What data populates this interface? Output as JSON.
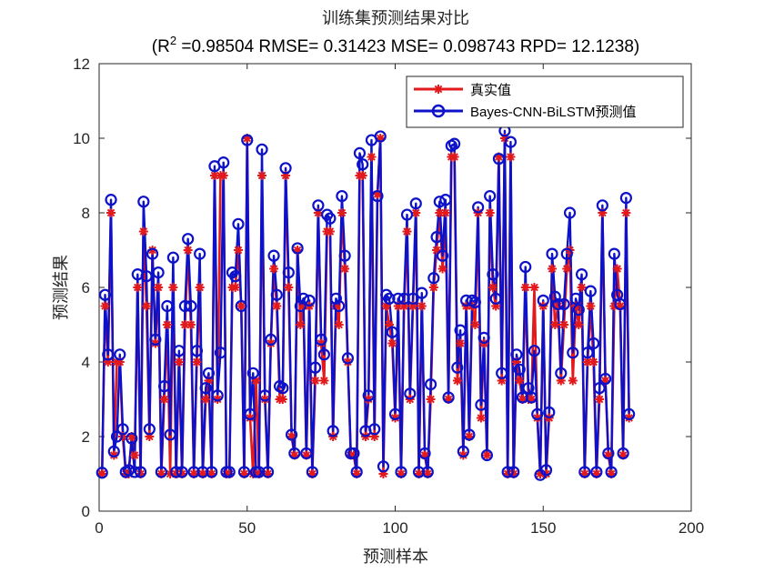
{
  "chart_data": {
    "type": "line",
    "title": "训练集预测结果对比",
    "subtitle": "(R² =0.98504 RMSE= 0.31423 MSE= 0.098743 RPD= 12.1238)",
    "xlabel": "预测样本",
    "ylabel": "预测结果",
    "xlim": [
      0,
      200
    ],
    "ylim": [
      0,
      12
    ],
    "xticks": [
      "0",
      "50",
      "100",
      "150",
      "200"
    ],
    "yticks": [
      "0",
      "2",
      "4",
      "6",
      "8",
      "10",
      "12"
    ],
    "grid": false,
    "legend_position": "top-right",
    "series": [
      {
        "name": "真实值",
        "color": "#e31a1c",
        "marker": "asterisk",
        "values": [
          1,
          5.5,
          4,
          8,
          1.5,
          4,
          4,
          2,
          1,
          1,
          2,
          1.5,
          6,
          1,
          7.5,
          5.5,
          2,
          7,
          4.5,
          6,
          1,
          3,
          5,
          1,
          6,
          1,
          4,
          1,
          5,
          7,
          5,
          1,
          4,
          6,
          1,
          3,
          3.5,
          1,
          9,
          3,
          9,
          9,
          1,
          1,
          6,
          6,
          7,
          5.5,
          1,
          10,
          2.5,
          1,
          3.5,
          1,
          9,
          3,
          1,
          4.5,
          6.5,
          5.5,
          3,
          3,
          9,
          6,
          2,
          1.5,
          7,
          5,
          5.5,
          1.5,
          5.5,
          1,
          3.5,
          8,
          4.5,
          3.5,
          7.5,
          7.5,
          2,
          5.5,
          5,
          8,
          6.5,
          4,
          1.5,
          1.5,
          1,
          9,
          9,
          2,
          3,
          9.5,
          2,
          8.5,
          10,
          1,
          5.5,
          5,
          4.5,
          2.5,
          5.5,
          1,
          5.5,
          7.5,
          3,
          5.5,
          8,
          1,
          5.5,
          1.5,
          1,
          3,
          6,
          7,
          8,
          6.5,
          8,
          3,
          9.5,
          9.5,
          3.5,
          4.5,
          1.5,
          5.5,
          2,
          5.5,
          5,
          8,
          2.5,
          4.5,
          1.5,
          8,
          6,
          5.5,
          9.5,
          3.5,
          10,
          1,
          9.5,
          1,
          4,
          3.5,
          3,
          6,
          3,
          3,
          6,
          2.5,
          1,
          5.5,
          1,
          2.5,
          6.5,
          5,
          5.5,
          3.5,
          5,
          6.5,
          7,
          3.5,
          5.5,
          5,
          6,
          1,
          4,
          5.5,
          4,
          1,
          3,
          8,
          3.5,
          1.5,
          1,
          5.5,
          6.5,
          5.5,
          1.5,
          8,
          2.5
        ],
        "name_ref": "legend.true_label"
      },
      {
        "name": "Bayes-CNN-BiLSTM预测值",
        "color": "#0d12c9",
        "marker": "circle",
        "values": [
          1.03,
          5.8,
          4.2,
          8.35,
          1.6,
          2,
          4.2,
          2.2,
          1.05,
          1.1,
          1.95,
          1.05,
          6.35,
          1.05,
          8.3,
          6.3,
          2.2,
          6.9,
          4.6,
          6.4,
          1.05,
          3.35,
          5.5,
          2.05,
          6.8,
          1.05,
          4.3,
          1.05,
          5.5,
          7.3,
          5.5,
          1.05,
          4.3,
          6.9,
          1.05,
          3.3,
          3.7,
          1.05,
          9.25,
          3.1,
          4.25,
          9.35,
          1.05,
          1.05,
          6.4,
          6.3,
          7.7,
          5.5,
          1.05,
          9.95,
          2.6,
          3.7,
          1.05,
          1.05,
          9.7,
          3.1,
          1.05,
          4.6,
          6.85,
          5.8,
          3.35,
          3.3,
          9.2,
          6.4,
          2.05,
          1.55,
          7.05,
          5.5,
          5.7,
          1.55,
          5.65,
          1.05,
          3.85,
          8.2,
          4.6,
          4.2,
          7.95,
          7.85,
          2.15,
          5.7,
          5.5,
          8.45,
          6.85,
          4.1,
          1.55,
          1.55,
          1.05,
          9.6,
          9.3,
          2.15,
          3.1,
          9.95,
          2.2,
          8.45,
          10.05,
          1.2,
          5.8,
          5.7,
          4.8,
          2.6,
          5.7,
          1.05,
          5.7,
          7.95,
          3.15,
          5.7,
          8.25,
          1.05,
          5.85,
          1.55,
          1.05,
          3.4,
          6.25,
          7.35,
          8.3,
          6.85,
          8.35,
          3.05,
          9.8,
          9.85,
          3.85,
          4.85,
          1.6,
          5.65,
          2.05,
          5.65,
          5.6,
          8.15,
          2.85,
          4.65,
          1.5,
          8.45,
          6.35,
          5.7,
          9.45,
          3.7,
          10.2,
          1.05,
          9.9,
          1.05,
          4.2,
          3.8,
          3.05,
          6.55,
          3.3,
          3.05,
          4.3,
          2.6,
          0.97,
          5.65,
          1.1,
          2.65,
          6.9,
          5.75,
          5.55,
          3.7,
          5.55,
          6.9,
          8,
          4.25,
          5.7,
          5.4,
          6.35,
          1.05,
          4.25,
          5.9,
          4.5,
          1.05,
          3.3,
          8.2,
          3.55,
          1.55,
          1.05,
          6.9,
          5.8,
          5.55,
          1.55,
          8.4,
          2.6
        ]
      }
    ]
  },
  "legend": {
    "true_label": "真实值",
    "pred_label": "Bayes-CNN-BiLSTM预测值"
  }
}
